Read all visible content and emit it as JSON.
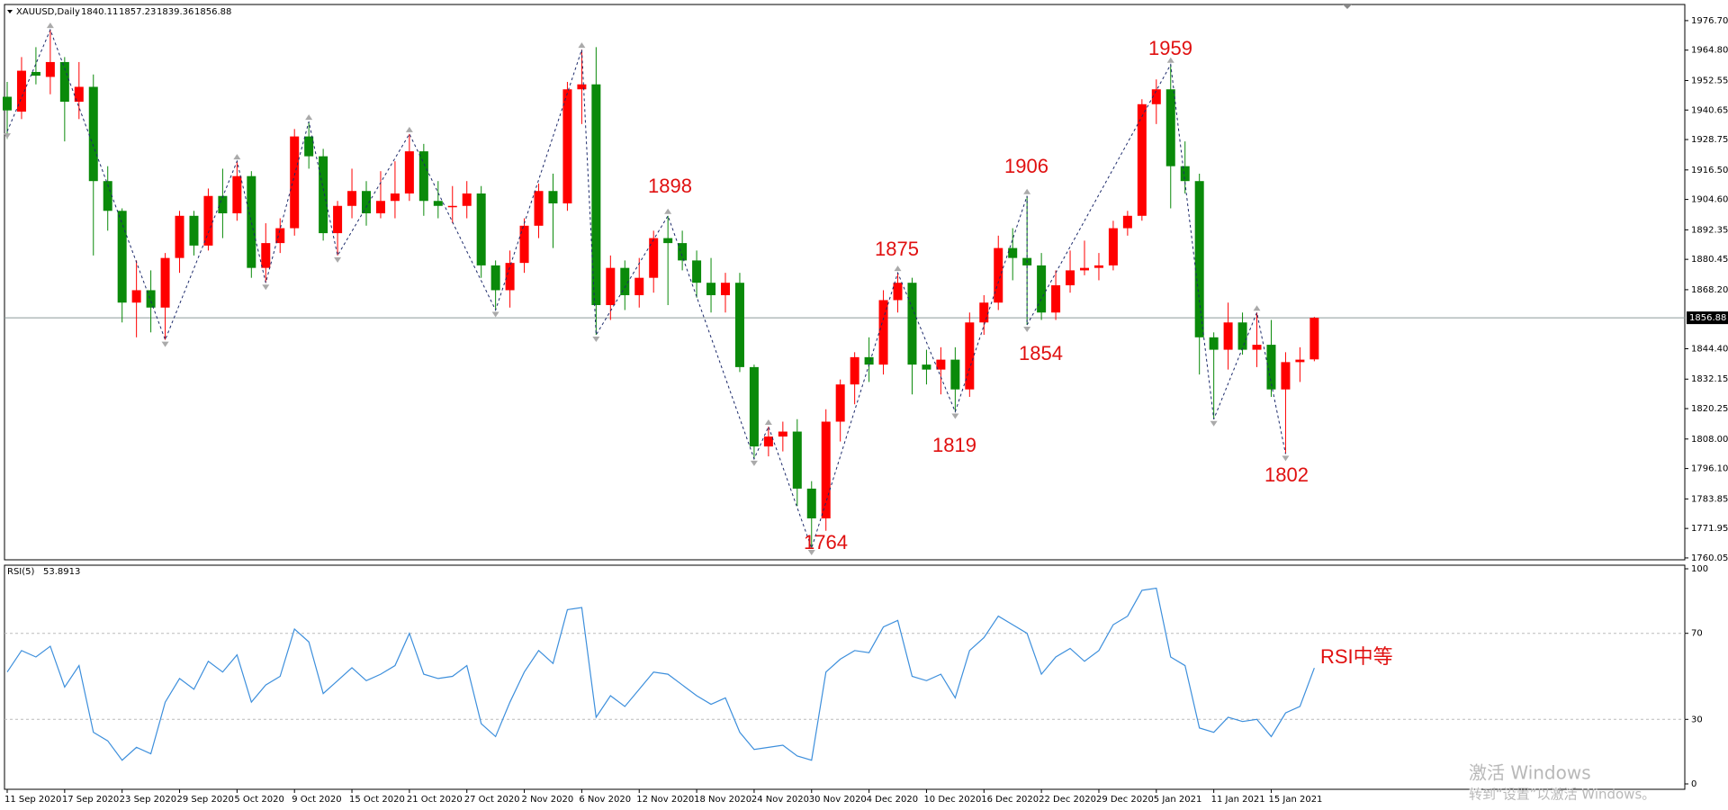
{
  "chart_data": {
    "type": "candlestick",
    "symbol": "XAUUSD,Daily",
    "up_color": "#ff0000",
    "down_color": "#0a8a0a",
    "categories": [
      "11 Sep 2020",
      null,
      null,
      null,
      "17 Sep 2020",
      null,
      null,
      null,
      "23 Sep 2020",
      null,
      null,
      null,
      "29 Sep 2020",
      null,
      null,
      null,
      "5 Oct 2020",
      null,
      null,
      null,
      "9 Oct 2020",
      null,
      null,
      null,
      "15 Oct 2020",
      null,
      null,
      null,
      "21 Oct 2020",
      null,
      null,
      null,
      "27 Oct 2020",
      null,
      null,
      null,
      "2 Nov 2020",
      null,
      null,
      null,
      "6 Nov 2020",
      null,
      null,
      null,
      "12 Nov 2020",
      null,
      null,
      null,
      "18 Nov 2020",
      null,
      null,
      null,
      "24 Nov 2020",
      null,
      null,
      null,
      "30 Nov 2020",
      null,
      null,
      null,
      "4 Dec 2020",
      null,
      null,
      null,
      "10 Dec 2020",
      null,
      null,
      null,
      "16 Dec 2020",
      null,
      null,
      null,
      "22 Dec 2020",
      null,
      null,
      null,
      "29 Dec 2020",
      null,
      null,
      null,
      "5 Jan 2021",
      null,
      null,
      null,
      "11 Jan 2021",
      null,
      null,
      null,
      "15 Jan 2021",
      null,
      null,
      null
    ],
    "open": [
      1946,
      1940,
      1956,
      1954,
      1960,
      1944,
      1950,
      1912,
      1900,
      1863,
      1868,
      1861,
      1881,
      1898,
      1886,
      1906,
      1899,
      1914,
      1877,
      1887,
      1893,
      1930,
      1922,
      1891,
      1902,
      1908,
      1899,
      1904,
      1907,
      1924,
      1904,
      1902,
      1902,
      1907,
      1878,
      1868,
      1879,
      1894,
      1908,
      1903,
      1949,
      1951,
      1862,
      1877,
      1866,
      1873,
      1889,
      1887,
      1880,
      1871,
      1866,
      1871,
      1837,
      1805,
      1809,
      1811,
      1788,
      1776,
      1815,
      1830,
      1841,
      1838,
      1864,
      1871,
      1838,
      1836,
      1840,
      1828,
      1855,
      1863,
      1885,
      1881,
      1878,
      1859,
      1870,
      1876,
      1877,
      1878,
      1893,
      1898,
      1943,
      1949,
      1918,
      1912,
      1849,
      1844,
      1855,
      1844,
      1846,
      1828,
      1839,
      1840.11
    ],
    "high": [
      1952,
      1962,
      1966,
      1973,
      1962,
      1960,
      1955,
      1918,
      1901,
      1880,
      1876,
      1883,
      1900,
      1900,
      1909,
      1917,
      1920,
      1916,
      1895,
      1897,
      1933,
      1936,
      1925,
      1904,
      1917,
      1912,
      1916,
      1920,
      1931,
      1927,
      1912,
      1910,
      1912,
      1910,
      1880,
      1884,
      1897,
      1911,
      1915,
      1952,
      1965,
      1966,
      1882,
      1880,
      1881,
      1892,
      1898,
      1892,
      1884,
      1881,
      1875,
      1875,
      1838,
      1813,
      1815,
      1816,
      1791,
      1820,
      1832,
      1843,
      1849,
      1868,
      1875,
      1873,
      1844,
      1845,
      1845,
      1859,
      1866,
      1890,
      1893,
      1906,
      1883,
      1876,
      1884,
      1888,
      1883,
      1896,
      1900,
      1945,
      1953,
      1959,
      1928,
      1915,
      1851,
      1863,
      1859,
      1859,
      1856,
      1843,
      1845,
      1857.23
    ],
    "low": [
      1929,
      1937,
      1951,
      1947,
      1928,
      1937,
      1882,
      1892,
      1855,
      1849,
      1851,
      1848,
      1875,
      1882,
      1884,
      1889,
      1896,
      1873,
      1871,
      1883,
      1890,
      1917,
      1888,
      1882,
      1897,
      1894,
      1897,
      1897,
      1904,
      1898,
      1897,
      1895,
      1897,
      1873,
      1860,
      1861,
      1875,
      1889,
      1885,
      1900,
      1935,
      1850,
      1856,
      1860,
      1861,
      1867,
      1862,
      1876,
      1865,
      1859,
      1859,
      1835,
      1800,
      1801,
      1803,
      1781,
      1764,
      1771,
      1807,
      1822,
      1831,
      1834,
      1859,
      1826,
      1830,
      1826,
      1819,
      1825,
      1850,
      1860,
      1872,
      1854,
      1856,
      1856,
      1867,
      1874,
      1872,
      1876,
      1890,
      1896,
      1935,
      1901,
      1907,
      1834,
      1816,
      1836,
      1842,
      1837,
      1825,
      1802,
      1831,
      1839.36
    ],
    "close": [
      1940.5,
      1956.5,
      1954.5,
      1960,
      1944,
      1950,
      1912,
      1900,
      1863,
      1868,
      1861,
      1881,
      1898,
      1886,
      1906,
      1899,
      1914,
      1877,
      1887,
      1893,
      1930,
      1922,
      1891,
      1902,
      1908,
      1899,
      1904,
      1907,
      1924,
      1904,
      1902,
      1902,
      1907,
      1878,
      1868,
      1879,
      1894,
      1908,
      1903,
      1949,
      1951,
      1862,
      1877,
      1866,
      1873,
      1889,
      1887,
      1880,
      1871,
      1866,
      1871,
      1837,
      1805,
      1809,
      1811,
      1788,
      1776,
      1815,
      1830,
      1841,
      1838,
      1864,
      1871,
      1838,
      1836,
      1840,
      1828,
      1855,
      1863,
      1885,
      1881,
      1878,
      1859,
      1870,
      1876,
      1877,
      1878,
      1893,
      1898,
      1943,
      1949,
      1918,
      1912,
      1849,
      1844,
      1855,
      1844,
      1846,
      1828,
      1839,
      1840,
      1856.88
    ],
    "ylim": [
      1759.3,
      1983.2
    ],
    "yticks": [
      {
        "value": 1976.7,
        "label": "1976.70"
      },
      {
        "value": 1964.8,
        "label": "1964.80"
      },
      1952.55,
      1940.65,
      1928.75,
      {
        "value": 1916.5,
        "label": "1916.50"
      },
      {
        "value": 1904.6,
        "label": "1904.60"
      },
      1892.35,
      1880.45,
      {
        "value": 1868.2,
        "label": "1868.20"
      },
      {
        "value": 1844.4,
        "label": "1844.40"
      },
      1832.15,
      1820.25,
      {
        "value": 1808,
        "label": "1808.00"
      },
      {
        "value": 1796.1,
        "label": "1796.10"
      },
      1783.85,
      1771.95,
      1760.05
    ],
    "last_price": 1856.88,
    "zigzag": {
      "color": "#1c2a6b",
      "bars": [
        0,
        3,
        11,
        16,
        18,
        21,
        23,
        28,
        34,
        40,
        41,
        46,
        52,
        53,
        56,
        62,
        66,
        71,
        71,
        81,
        84,
        87,
        89
      ],
      "prices": [
        1932,
        1973,
        1848,
        1920,
        1871,
        1936,
        1882,
        1931,
        1860,
        1965,
        1850,
        1898,
        1800,
        1813,
        1764,
        1875,
        1819,
        1906,
        1854,
        1959,
        1816,
        1859,
        1802
      ]
    },
    "annotations": [
      "1898",
      "1875",
      "1906",
      "1854",
      "1819",
      "1959",
      "1764",
      "1802"
    ],
    "rsi": {
      "name": "RSI(5)",
      "color": "#3d8fdc",
      "annotation": "RSI中等",
      "ylim": [
        0,
        100
      ],
      "yticks": [
        0,
        30,
        70,
        100
      ],
      "levels": [
        30,
        70
      ],
      "values": [
        52,
        62,
        59,
        64,
        45,
        55,
        24,
        20,
        11,
        17,
        14,
        38,
        49,
        44,
        57,
        52,
        60,
        38,
        46,
        50,
        72,
        66,
        42,
        48,
        54,
        48,
        51,
        55,
        70,
        51,
        49,
        50,
        55,
        28,
        22,
        38,
        52,
        62,
        56,
        81,
        82,
        31,
        41,
        36,
        44,
        52,
        51,
        46,
        41,
        37,
        40,
        24,
        16,
        17,
        18,
        13,
        11,
        52,
        58,
        62,
        61,
        73,
        76,
        50,
        48,
        51,
        40,
        62,
        68,
        78,
        74,
        70,
        51,
        59,
        63,
        57,
        62,
        74,
        78,
        90,
        91,
        59,
        55,
        26,
        24,
        31,
        29,
        30,
        22,
        33,
        36,
        53.8913
      ]
    }
  },
  "watermark": {
    "title": "激活 Windows",
    "subtitle": "转到“设置”以激活 Windows。"
  }
}
